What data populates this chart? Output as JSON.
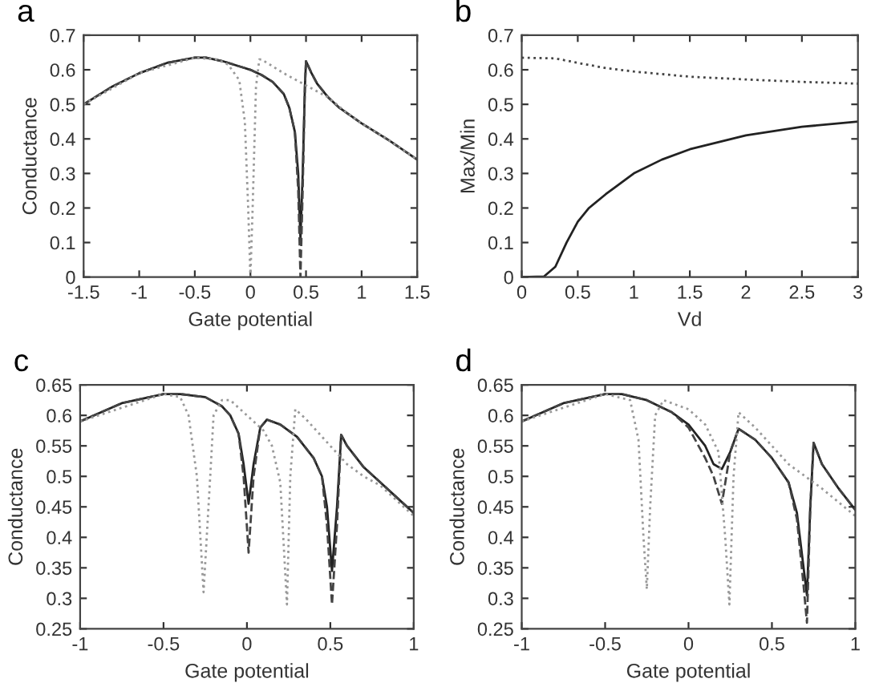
{
  "chart_data": [
    {
      "type": "line",
      "title": "a",
      "xlabel": "Gate potential",
      "ylabel": "Conductance",
      "xlim": [
        -1.5,
        1.5
      ],
      "xticks": [
        -1.5,
        -1,
        -0.5,
        0,
        0.5,
        1,
        1.5
      ],
      "ylim": [
        0,
        0.7
      ],
      "yticks": [
        0,
        0.1,
        0.2,
        0.3,
        0.4,
        0.5,
        0.6,
        0.7
      ],
      "grid": false,
      "legend": false,
      "series": [
        {
          "color": "#222222",
          "line_style": "solid",
          "x": [
            -1.5,
            -1.25,
            -1.0,
            -0.75,
            -0.5,
            -0.4,
            -0.25,
            -0.1,
            0,
            0.1,
            0.2,
            0.3,
            0.35,
            0.4,
            0.43,
            0.45,
            0.47,
            0.49,
            0.5,
            0.55,
            0.6,
            0.7,
            0.8,
            1.0,
            1.25,
            1.5
          ],
          "values": [
            0.5,
            0.55,
            0.59,
            0.62,
            0.635,
            0.635,
            0.625,
            0.61,
            0.6,
            0.585,
            0.565,
            0.53,
            0.49,
            0.42,
            0.3,
            0.11,
            0.3,
            0.55,
            0.625,
            0.59,
            0.56,
            0.52,
            0.49,
            0.445,
            0.395,
            0.34
          ]
        },
        {
          "color": "#444444",
          "line_style": "dashed",
          "x": [
            -1.5,
            -1.25,
            -1.0,
            -0.75,
            -0.5,
            -0.4,
            -0.25,
            -0.1,
            0,
            0.1,
            0.2,
            0.3,
            0.35,
            0.4,
            0.43,
            0.45,
            0.47,
            0.49,
            0.5,
            0.55,
            0.6,
            0.7,
            0.8,
            1.0,
            1.25,
            1.5
          ],
          "values": [
            0.5,
            0.55,
            0.59,
            0.62,
            0.635,
            0.635,
            0.625,
            0.61,
            0.6,
            0.585,
            0.565,
            0.53,
            0.49,
            0.42,
            0.25,
            0,
            0.25,
            0.55,
            0.625,
            0.59,
            0.56,
            0.52,
            0.49,
            0.445,
            0.395,
            0.34
          ]
        },
        {
          "color": "#999999",
          "line_style": "dotted",
          "x": [
            -1.5,
            -1.0,
            -0.5,
            -0.3,
            -0.2,
            -0.1,
            -0.05,
            -0.02,
            0,
            0.02,
            0.05,
            0.08,
            0.1,
            0.3,
            0.5,
            0.7,
            0.85,
            1.0,
            1.25,
            1.5
          ],
          "values": [
            0.5,
            0.59,
            0.635,
            0.63,
            0.615,
            0.57,
            0.45,
            0.2,
            0,
            0.2,
            0.55,
            0.63,
            0.63,
            0.59,
            0.555,
            0.52,
            0.48,
            0.445,
            0.395,
            0.34
          ]
        }
      ]
    },
    {
      "type": "line",
      "title": "b",
      "xlabel": "Vd",
      "ylabel": "Max/Min",
      "xlim": [
        0,
        3
      ],
      "xticks": [
        0,
        0.5,
        1,
        1.5,
        2,
        2.5,
        3
      ],
      "ylim": [
        0,
        0.7
      ],
      "yticks": [
        0,
        0.1,
        0.2,
        0.3,
        0.4,
        0.5,
        0.6,
        0.7
      ],
      "grid": false,
      "legend": false,
      "series": [
        {
          "color": "#222222",
          "line_style": "solid",
          "x": [
            0,
            0.2,
            0.3,
            0.4,
            0.5,
            0.6,
            0.75,
            1,
            1.25,
            1.5,
            2,
            2.5,
            3
          ],
          "values": [
            0,
            0.002,
            0.03,
            0.1,
            0.16,
            0.2,
            0.24,
            0.3,
            0.34,
            0.37,
            0.41,
            0.435,
            0.45
          ]
        },
        {
          "color": "#444444",
          "line_style": "dotted",
          "x": [
            0,
            0.3,
            0.5,
            0.75,
            1,
            1.5,
            2,
            2.5,
            3
          ],
          "values": [
            0.635,
            0.633,
            0.62,
            0.605,
            0.595,
            0.58,
            0.572,
            0.565,
            0.56
          ]
        }
      ]
    },
    {
      "type": "line",
      "title": "c",
      "xlabel": "Gate potential",
      "ylabel": "Conductance",
      "xlim": [
        -1,
        1
      ],
      "xticks": [
        -1,
        -0.5,
        0,
        0.5,
        1
      ],
      "ylim": [
        0.25,
        0.65
      ],
      "yticks": [
        0.25,
        0.3,
        0.35,
        0.4,
        0.45,
        0.5,
        0.55,
        0.6,
        0.65
      ],
      "grid": false,
      "legend": false,
      "series": [
        {
          "color": "#222222",
          "line_style": "solid",
          "x": [
            -1,
            -0.75,
            -0.5,
            -0.4,
            -0.25,
            -0.15,
            -0.1,
            -0.05,
            -0.02,
            0.01,
            0.04,
            0.08,
            0.12,
            0.2,
            0.3,
            0.4,
            0.45,
            0.48,
            0.51,
            0.54,
            0.565,
            0.6,
            0.7,
            0.8,
            0.9,
            1.0
          ],
          "values": [
            0.59,
            0.62,
            0.635,
            0.635,
            0.63,
            0.615,
            0.6,
            0.57,
            0.52,
            0.455,
            0.52,
            0.58,
            0.593,
            0.585,
            0.565,
            0.53,
            0.5,
            0.45,
            0.345,
            0.45,
            0.568,
            0.55,
            0.515,
            0.49,
            0.465,
            0.44
          ]
        },
        {
          "color": "#444444",
          "line_style": "dashed",
          "x": [
            -1,
            -0.75,
            -0.5,
            -0.4,
            -0.25,
            -0.15,
            -0.1,
            -0.05,
            -0.02,
            0.01,
            0.04,
            0.08,
            0.12,
            0.2,
            0.3,
            0.4,
            0.45,
            0.48,
            0.51,
            0.54,
            0.565,
            0.6,
            0.7,
            0.8,
            0.9,
            1.0
          ],
          "values": [
            0.59,
            0.62,
            0.635,
            0.635,
            0.63,
            0.615,
            0.6,
            0.57,
            0.5,
            0.375,
            0.5,
            0.58,
            0.593,
            0.585,
            0.565,
            0.53,
            0.5,
            0.42,
            0.29,
            0.42,
            0.568,
            0.55,
            0.515,
            0.49,
            0.465,
            0.44
          ]
        },
        {
          "color": "#999999",
          "line_style": "dotted",
          "x": [
            -1,
            -0.5,
            -0.4,
            -0.35,
            -0.3,
            -0.26,
            -0.22,
            -0.2,
            -0.15,
            -0.1,
            0,
            0.1,
            0.15,
            0.2,
            0.24,
            0.26,
            0.29,
            0.35,
            0.5,
            0.6,
            0.7,
            0.8,
            1.0
          ],
          "values": [
            0.59,
            0.635,
            0.63,
            0.6,
            0.5,
            0.31,
            0.5,
            0.6,
            0.625,
            0.625,
            0.6,
            0.575,
            0.55,
            0.49,
            0.29,
            0.5,
            0.61,
            0.595,
            0.55,
            0.52,
            0.5,
            0.485,
            0.435
          ]
        }
      ]
    },
    {
      "type": "line",
      "title": "d",
      "xlabel": "Gate potential",
      "ylabel": "Conductance",
      "xlim": [
        -1,
        1
      ],
      "xticks": [
        -1,
        -0.5,
        0,
        0.5,
        1
      ],
      "ylim": [
        0.25,
        0.65
      ],
      "yticks": [
        0.25,
        0.3,
        0.35,
        0.4,
        0.45,
        0.5,
        0.55,
        0.6,
        0.65
      ],
      "grid": false,
      "legend": false,
      "series": [
        {
          "color": "#222222",
          "line_style": "solid",
          "x": [
            -1,
            -0.75,
            -0.5,
            -0.4,
            -0.25,
            -0.1,
            0,
            0.1,
            0.15,
            0.2,
            0.25,
            0.3,
            0.4,
            0.5,
            0.6,
            0.65,
            0.69,
            0.71,
            0.73,
            0.75,
            0.8,
            0.9,
            1.0
          ],
          "values": [
            0.59,
            0.62,
            0.635,
            0.635,
            0.625,
            0.605,
            0.585,
            0.55,
            0.52,
            0.512,
            0.54,
            0.578,
            0.56,
            0.53,
            0.49,
            0.44,
            0.35,
            0.305,
            0.45,
            0.555,
            0.52,
            0.48,
            0.445
          ]
        },
        {
          "color": "#444444",
          "line_style": "dashed",
          "x": [
            -1,
            -0.75,
            -0.5,
            -0.4,
            -0.25,
            -0.1,
            0,
            0.1,
            0.15,
            0.2,
            0.25,
            0.3,
            0.4,
            0.5,
            0.6,
            0.65,
            0.69,
            0.71,
            0.73,
            0.75,
            0.8,
            0.9,
            1.0
          ],
          "values": [
            0.59,
            0.62,
            0.635,
            0.635,
            0.625,
            0.605,
            0.58,
            0.53,
            0.5,
            0.455,
            0.54,
            0.578,
            0.56,
            0.53,
            0.49,
            0.43,
            0.32,
            0.26,
            0.45,
            0.555,
            0.52,
            0.48,
            0.445
          ]
        },
        {
          "color": "#999999",
          "line_style": "dotted",
          "x": [
            -1,
            -0.5,
            -0.35,
            -0.3,
            -0.27,
            -0.25,
            -0.23,
            -0.2,
            -0.15,
            0,
            0.1,
            0.18,
            0.22,
            0.245,
            0.27,
            0.3,
            0.4,
            0.6,
            0.8,
            1.0
          ],
          "values": [
            0.59,
            0.635,
            0.625,
            0.56,
            0.4,
            0.315,
            0.45,
            0.6,
            0.625,
            0.61,
            0.585,
            0.54,
            0.4,
            0.29,
            0.5,
            0.605,
            0.58,
            0.52,
            0.48,
            0.435
          ]
        }
      ]
    }
  ]
}
